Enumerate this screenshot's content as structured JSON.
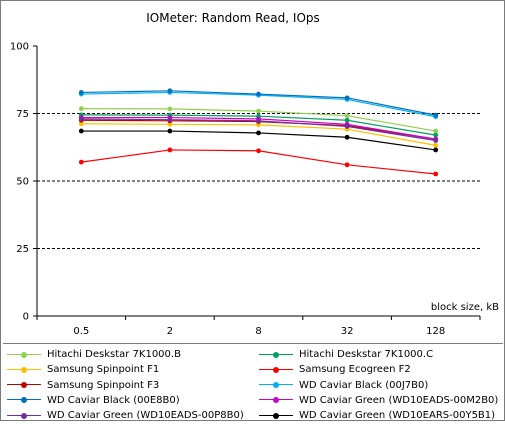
{
  "chart_data": {
    "type": "line",
    "title": "IOMeter: Random Read, IOps",
    "xlabel": "block size, kB",
    "ylabel": "",
    "categories": [
      "0.5",
      "2",
      "8",
      "32",
      "128"
    ],
    "ylim": [
      0,
      100
    ],
    "yticks": [
      "0",
      "25",
      "50",
      "75",
      "100"
    ],
    "grid": "horizontal dashed at 25, 50, 75",
    "legend_position": "bottom",
    "series": [
      {
        "name": "Hitachi Deskstar 7K1000.B",
        "color": "#92d050",
        "values": [
          76.8,
          76.7,
          75.9,
          74.2,
          68.5
        ]
      },
      {
        "name": "Hitachi Deskstar 7K1000.C",
        "color": "#00a060",
        "values": [
          74.5,
          74.4,
          74.0,
          72.5,
          67.0
        ]
      },
      {
        "name": "Samsung Spinpoint F1",
        "color": "#ffc000",
        "values": [
          71.2,
          71.0,
          70.8,
          69.2,
          63.2
        ]
      },
      {
        "name": "Samsung Ecogreen F2",
        "color": "#ff0000",
        "values": [
          57.0,
          61.5,
          61.2,
          56.0,
          52.6
        ]
      },
      {
        "name": "Samsung Spinpoint F3",
        "color": "#c00000",
        "values": [
          72.5,
          72.3,
          72.0,
          70.5,
          65.5
        ]
      },
      {
        "name": "WD Caviar Black (00J7B0)",
        "color": "#00b0f0",
        "values": [
          82.2,
          82.8,
          81.8,
          80.2,
          73.8
        ]
      },
      {
        "name": "WD Caviar Black (00E8B0)",
        "color": "#0070c0",
        "values": [
          82.8,
          83.4,
          82.2,
          80.8,
          74.4
        ]
      },
      {
        "name": "WD Caviar Green (WD10EADS-00M2B0)",
        "color": "#cc00cc",
        "values": [
          73.5,
          73.5,
          73.0,
          71.0,
          65.5
        ]
      },
      {
        "name": "WD Caviar Green (WD10EADS-00P8B0)",
        "color": "#7030a0",
        "values": [
          73.0,
          72.7,
          72.3,
          70.2,
          65.0
        ]
      },
      {
        "name": "WD Caviar Green (WD10EARS-00Y5B1)",
        "color": "#000000",
        "values": [
          68.5,
          68.5,
          67.8,
          66.2,
          61.5
        ]
      }
    ]
  }
}
